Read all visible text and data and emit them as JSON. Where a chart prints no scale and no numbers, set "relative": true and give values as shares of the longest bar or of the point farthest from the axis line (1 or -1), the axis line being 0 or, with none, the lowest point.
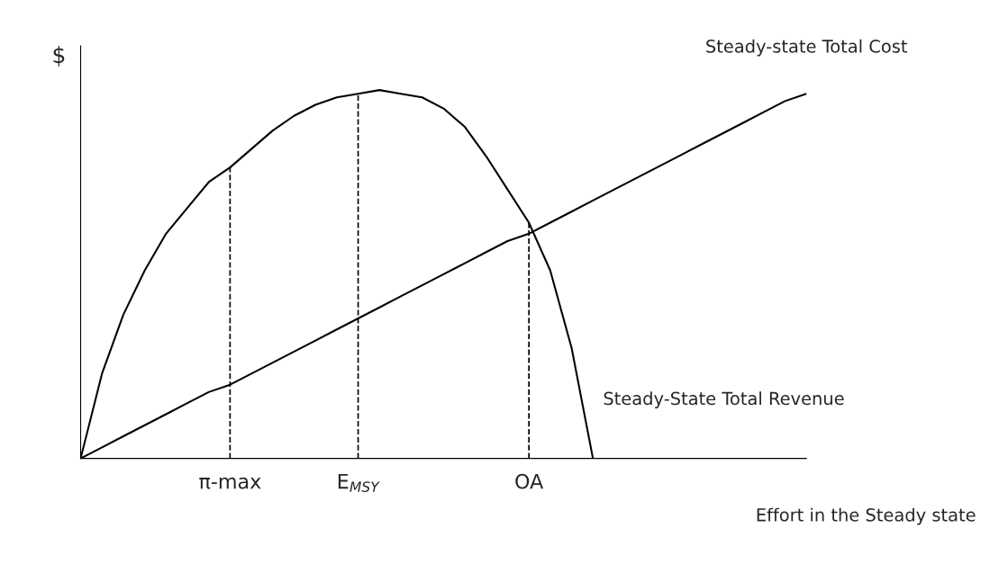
{
  "chart_data": {
    "type": "line",
    "relative": true,
    "ylabel": "$",
    "xlabel": "Effort in the Steady state",
    "categories": [
      null,
      null,
      null,
      null,
      null,
      null,
      null,
      "π-max",
      null,
      null,
      null,
      null,
      null,
      "E$_{MSY}$",
      null,
      null,
      null,
      null,
      null,
      null,
      null,
      "OA",
      null,
      null,
      null,
      null,
      null,
      null,
      null,
      null,
      null,
      null,
      null,
      null,
      null
    ],
    "series": [
      {
        "name": "Steady-State Total Revenue",
        "color": "#000000",
        "values": [
          0,
          0.23,
          0.39,
          0.51,
          0.61,
          0.68,
          0.75,
          0.79,
          0.84,
          0.89,
          0.93,
          0.96,
          0.98,
          0.99,
          1,
          0.99,
          0.98,
          0.95,
          0.9,
          0.82,
          0.73,
          0.64,
          0.51,
          0.3,
          0,
          null,
          null,
          null,
          null,
          null,
          null,
          null,
          null,
          null,
          null
        ]
      },
      {
        "name": "Steady-state Total Cost",
        "color": "#000000",
        "values": [
          0,
          0.03,
          0.06,
          0.09,
          0.12,
          0.15,
          0.18,
          0.2,
          0.23,
          0.26,
          0.29,
          0.32,
          0.35,
          0.38,
          0.41,
          0.44,
          0.47,
          0.5,
          0.53,
          0.56,
          0.59,
          0.61,
          0.64,
          0.67,
          0.7,
          0.73,
          0.76,
          0.79,
          0.82,
          0.85,
          0.88,
          0.91,
          0.94,
          0.97,
          0.99
        ]
      }
    ],
    "ref_lines": [
      {
        "axis": "x",
        "value": "π-max",
        "line_style": "dashed"
      },
      {
        "axis": "x",
        "value": "E$_{MSY}$",
        "line_style": "dashed"
      },
      {
        "axis": "x",
        "value": "OA",
        "line_style": "dashed"
      }
    ],
    "line_style": "solid"
  }
}
